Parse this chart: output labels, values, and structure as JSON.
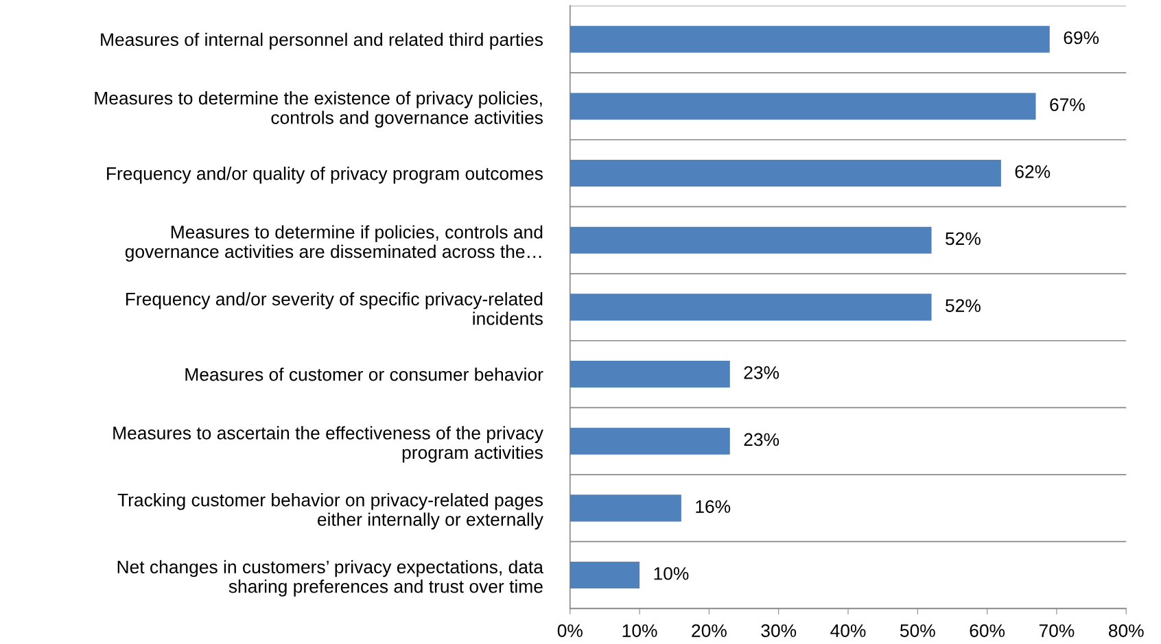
{
  "chart_data": {
    "type": "bar",
    "orientation": "horizontal",
    "categories": [
      "Measures of internal personnel and related third parties",
      "Measures to determine the existence of privacy policies,\ncontrols and governance activities",
      "Frequency and/or quality of privacy program outcomes",
      "Measures to determine if policies, controls and\ngovernance activities are disseminated across the…",
      "Frequency and/or severity of specific privacy-related\nincidents",
      "Measures of customer or consumer behavior",
      "Measures to ascertain the effectiveness of the privacy\nprogram activities",
      "Tracking customer behavior on privacy-related pages\neither internally or externally",
      "Net changes in customers’ privacy expectations, data\nsharing preferences and trust over time"
    ],
    "values": [
      69,
      67,
      62,
      52,
      52,
      23,
      23,
      16,
      10
    ],
    "value_labels": [
      "69%",
      "67%",
      "62%",
      "52%",
      "52%",
      "23%",
      "23%",
      "16%",
      "10%"
    ],
    "color": "#4f81bd",
    "xlim": [
      0,
      80
    ],
    "xticks": [
      {
        "value": 0,
        "label": "0%"
      },
      {
        "value": 10,
        "label": "10%"
      },
      {
        "value": 20,
        "label": "20%"
      },
      {
        "value": 30,
        "label": "30%"
      },
      {
        "value": 40,
        "label": "40%"
      },
      {
        "value": 50,
        "label": "50%"
      },
      {
        "value": 60,
        "label": "60%"
      },
      {
        "value": 70,
        "label": "70%"
      },
      {
        "value": 80,
        "label": "80%"
      }
    ],
    "grid": "y"
  }
}
